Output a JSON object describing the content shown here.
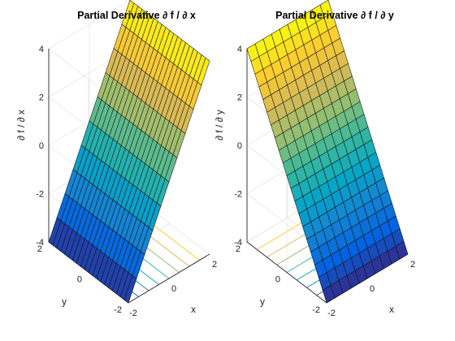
{
  "chart_data": [
    {
      "type": "surface",
      "function": "df/dx",
      "title": "Partial Derivative ∂ f / ∂ x",
      "xlabel": "x",
      "ylabel": "y",
      "zlabel": "∂ f / ∂ x",
      "xlim": [
        -2,
        2
      ],
      "ylim": [
        -2,
        2
      ],
      "zlim": [
        -4,
        4
      ],
      "xticks": [
        -2,
        0,
        2
      ],
      "yticks": [
        -2,
        0,
        2
      ],
      "zticks": [
        -4,
        -2,
        0,
        2,
        4
      ],
      "x_tick_labels": [
        "-2",
        "0",
        "2"
      ],
      "y_tick_labels": [
        "-2",
        "0",
        "2"
      ],
      "z_tick_labels": [
        "-4",
        "-2",
        "0",
        "2",
        "4"
      ],
      "grid_x": [
        -2,
        -1.6,
        -1.2,
        -0.8,
        -0.4,
        0,
        0.4,
        0.8,
        1.2,
        1.6,
        2
      ],
      "grid_y": [
        -2,
        -1.8,
        -1.6,
        -1.4,
        -1.2,
        -1,
        -0.8,
        -0.6,
        -0.4,
        -0.2,
        0,
        0.2,
        0.4,
        0.6,
        0.8,
        1,
        1.2,
        1.4,
        1.6,
        1.8,
        2
      ],
      "surface_z_formula": "z = 2*x",
      "contour_levels": [
        -3,
        -2,
        -1,
        0,
        1,
        2,
        3
      ],
      "contour_projection": "floor",
      "colormap": "parula",
      "grid": true
    },
    {
      "type": "surface",
      "function": "df/dy",
      "title": "Partial Derivative ∂ f / ∂ y",
      "xlabel": "x",
      "ylabel": "y",
      "zlabel": "∂ f / ∂ y",
      "xlim": [
        -2,
        2
      ],
      "ylim": [
        -2,
        2
      ],
      "zlim": [
        -4,
        4
      ],
      "xticks": [
        -2,
        0,
        2
      ],
      "yticks": [
        -2,
        0,
        2
      ],
      "zticks": [
        -4,
        -2,
        0,
        2,
        4
      ],
      "x_tick_labels": [
        "-2",
        "0",
        "2"
      ],
      "y_tick_labels": [
        "-2",
        "0",
        "2"
      ],
      "z_tick_labels": [
        "-4",
        "-2",
        "0",
        "2",
        "4"
      ],
      "grid_x": [
        -2,
        -1.6,
        -1.2,
        -0.8,
        -0.4,
        0,
        0.4,
        0.8,
        1.2,
        1.6,
        2
      ],
      "grid_y": [
        -2,
        -1.8,
        -1.6,
        -1.4,
        -1.2,
        -1,
        -0.8,
        -0.6,
        -0.4,
        -0.2,
        0,
        0.2,
        0.4,
        0.6,
        0.8,
        1,
        1.2,
        1.4,
        1.6,
        1.8,
        2
      ],
      "surface_z_formula": "z = 2*y",
      "contour_levels": [
        -3,
        -2,
        -1,
        0,
        1,
        2,
        3
      ],
      "contour_projection": "floor",
      "colormap": "parula",
      "grid": true
    }
  ],
  "colors": {
    "parula": [
      "#352a87",
      "#0363e1",
      "#1485d4",
      "#06a7c6",
      "#38b99e",
      "#92bf73",
      "#d9ba56",
      "#fcce2e",
      "#f9fb0e"
    ],
    "background": "#ffffff",
    "axes": "#262626",
    "grid": "#e6e6e6",
    "edge": "#101010"
  }
}
